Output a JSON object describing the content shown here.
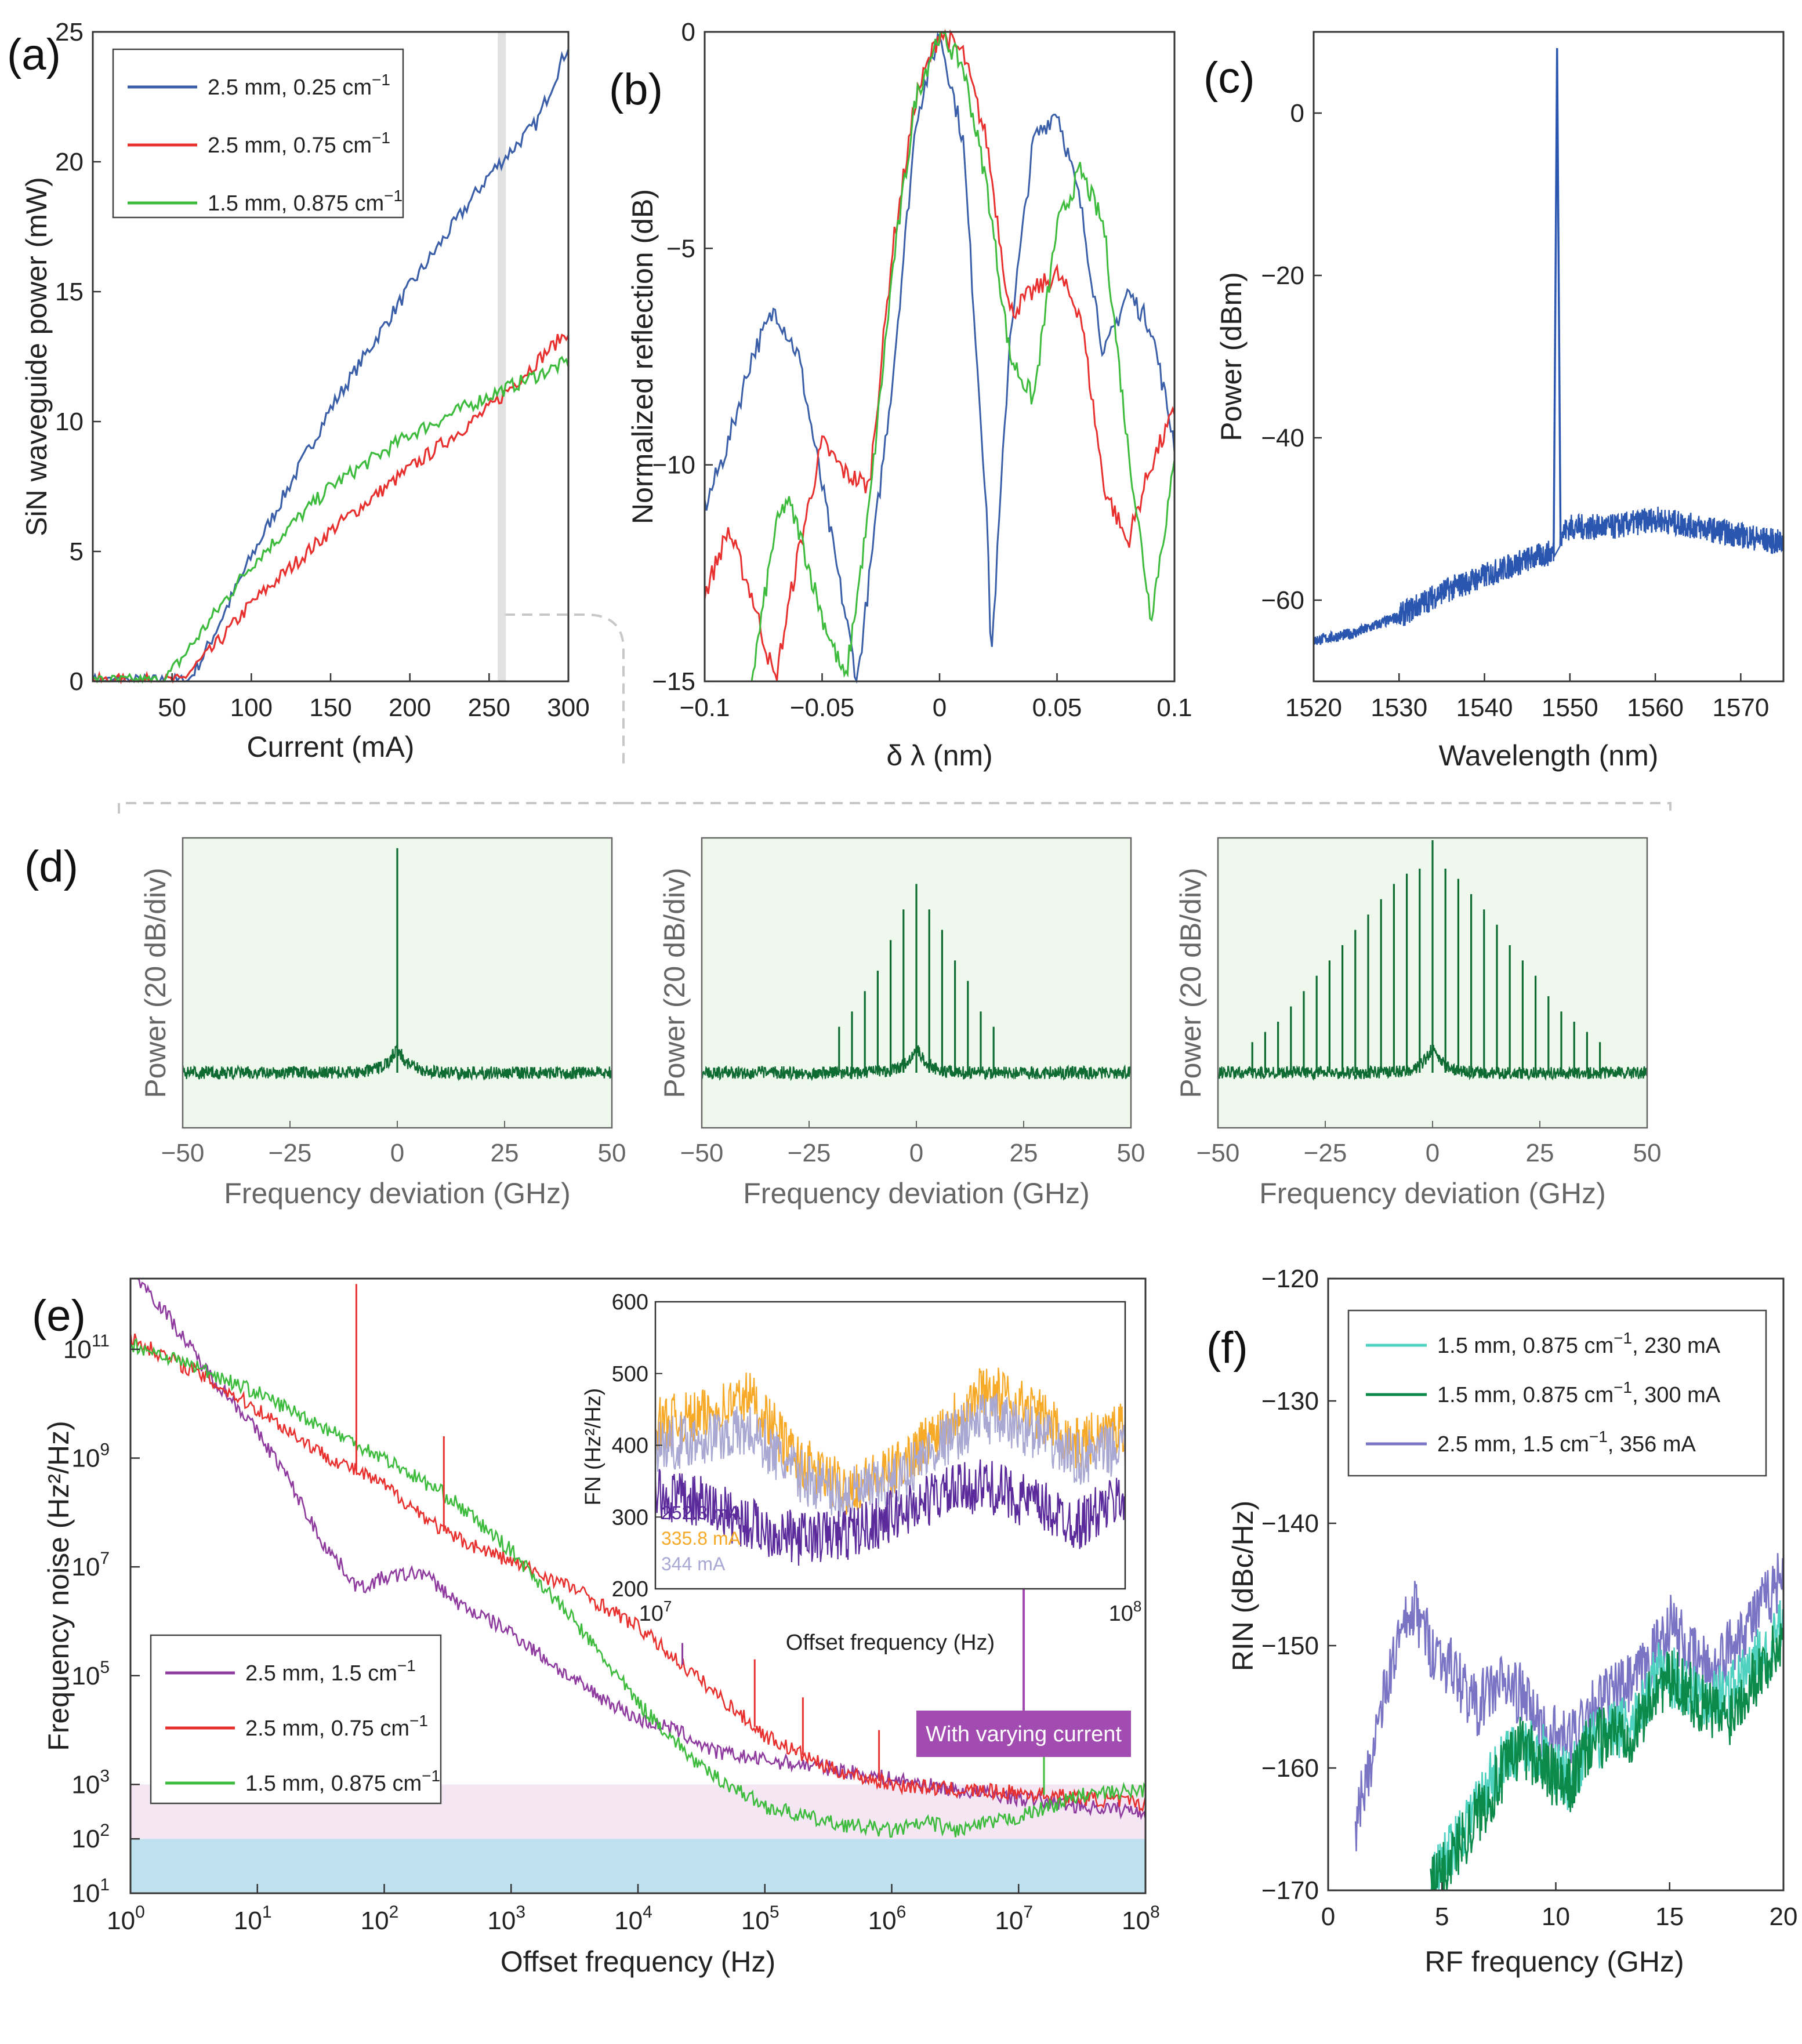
{
  "figure": {
    "panel_labels": [
      "(a)",
      "(b)",
      "(c)",
      "(d)",
      "(e)",
      "(f)"
    ]
  },
  "chart_data": [
    {
      "id": "a",
      "type": "line",
      "xlabel": "Current (mA)",
      "ylabel": "SiN waveguide power (mW)",
      "xlim": [
        0,
        300
      ],
      "ylim": [
        0,
        25
      ],
      "xticks": [
        50,
        100,
        150,
        200,
        250,
        300
      ],
      "yticks": [
        0,
        5,
        10,
        15,
        20,
        25
      ],
      "highlight_x": 258,
      "legend": "top-left",
      "series": [
        {
          "name": "2.5 mm, 0.25 cm",
          "sup": "−1",
          "color": "#3a5fa8",
          "x": [
            0,
            60,
            70,
            100,
            150,
            200,
            250,
            280,
            300
          ],
          "y": [
            0,
            0,
            1.0,
            4.8,
            10.5,
            15.2,
            19.5,
            21.5,
            24.5
          ]
        },
        {
          "name": "2.5 mm, 0.75 cm",
          "sup": "−1",
          "color": "#e8312f",
          "x": [
            0,
            55,
            75,
            100,
            150,
            200,
            250,
            300
          ],
          "y": [
            0,
            0,
            1.2,
            3.0,
            5.8,
            8.2,
            10.5,
            13.5
          ]
        },
        {
          "name": "1.5 mm, 0.875 cm",
          "sup": "−1",
          "color": "#3dbb3d",
          "x": [
            0,
            45,
            60,
            100,
            150,
            200,
            250,
            300
          ],
          "y": [
            0,
            0,
            1.2,
            4.5,
            7.5,
            9.5,
            11.0,
            12.3
          ]
        }
      ]
    },
    {
      "id": "b",
      "type": "line",
      "xlabel": "δ λ (nm)",
      "ylabel": "Normalized reflection (dB)",
      "xlim": [
        -0.1,
        0.1
      ],
      "ylim": [
        -15,
        0
      ],
      "xticks": [
        -0.1,
        -0.05,
        0,
        0.05,
        0.1
      ],
      "yticks": [
        0,
        -5,
        -10,
        -15
      ],
      "series": [
        {
          "name": "blue",
          "color": "#3a5fa8",
          "x": [
            -0.1,
            -0.09,
            -0.08,
            -0.07,
            -0.06,
            -0.05,
            -0.04,
            -0.035,
            -0.02,
            -0.01,
            0.0,
            0.01,
            0.02,
            0.022,
            0.03,
            0.04,
            0.05,
            0.06,
            0.07,
            0.08,
            0.09,
            0.1
          ],
          "y": [
            -11,
            -9.5,
            -7.5,
            -6.4,
            -7.5,
            -10.5,
            -13.5,
            -15,
            -8,
            -2,
            0,
            -2.5,
            -11,
            -14.5,
            -7,
            -2.5,
            -1.8,
            -4,
            -7.5,
            -6,
            -6.8,
            -9.5
          ]
        },
        {
          "name": "red",
          "color": "#e8312f",
          "x": [
            -0.1,
            -0.09,
            -0.08,
            -0.07,
            -0.06,
            -0.05,
            -0.04,
            -0.03,
            -0.02,
            -0.01,
            0.0,
            0.01,
            0.02,
            0.03,
            0.04,
            0.05,
            0.06,
            0.07,
            0.08,
            0.09,
            0.1
          ],
          "y": [
            -13,
            -11.5,
            -13,
            -15,
            -12,
            -9.5,
            -10.2,
            -10.5,
            -5,
            -1.5,
            0,
            -0.5,
            -2.5,
            -6.5,
            -6,
            -5.6,
            -6.5,
            -10.5,
            -11.8,
            -10,
            -8.8
          ]
        },
        {
          "name": "green",
          "color": "#3dbb3d",
          "x": [
            -0.08,
            -0.07,
            -0.065,
            -0.06,
            -0.05,
            -0.04,
            -0.03,
            -0.02,
            -0.01,
            0.0,
            0.01,
            0.02,
            0.03,
            0.04,
            0.05,
            0.06,
            0.07,
            0.08,
            0.09,
            0.1
          ],
          "y": [
            -15,
            -11.5,
            -10.8,
            -11.5,
            -13.5,
            -15,
            -11,
            -5.5,
            -1.5,
            0,
            -0.8,
            -3.5,
            -7.5,
            -8.5,
            -4.5,
            -3.2,
            -4.5,
            -9.5,
            -13.5,
            -10
          ]
        }
      ]
    },
    {
      "id": "c",
      "type": "line",
      "xlabel": "Wavelength (nm)",
      "ylabel": "Power (dBm)",
      "xlim": [
        1520,
        1575
      ],
      "ylim": [
        -70,
        10
      ],
      "xticks": [
        1520,
        1530,
        1540,
        1550,
        1560,
        1570
      ],
      "yticks": [
        -60,
        -40,
        -20,
        0
      ],
      "series": [
        {
          "name": "spectrum",
          "color": "#2a56b0",
          "x": [
            1520,
            1525,
            1530,
            1535,
            1540,
            1545,
            1548.3,
            1548.5,
            1548.7,
            1550,
            1555,
            1560,
            1565,
            1570,
            1575
          ],
          "y": [
            -65,
            -64,
            -62,
            -59,
            -57,
            -55,
            -54,
            8,
            -52,
            -51,
            -51,
            -50,
            -51,
            -52,
            -53
          ]
        }
      ]
    },
    {
      "id": "d",
      "type": "line",
      "xlabel": "Frequency deviation (GHz)",
      "ylabel": "Power (20 dB/div)",
      "xlim": [
        -50,
        50
      ],
      "xticks": [
        -50,
        -25,
        0,
        25,
        50
      ],
      "subplots": [
        {
          "name": "single-line",
          "peaks": [
            0
          ],
          "peak_heights_div": [
            4.4
          ]
        },
        {
          "name": "few-comb-lines",
          "peaks": [
            -18,
            -15,
            -12,
            -9,
            -6,
            -3,
            0,
            3,
            6,
            9,
            12,
            15,
            18
          ],
          "peak_heights_div": [
            0.9,
            1.2,
            1.6,
            2.0,
            2.6,
            3.2,
            3.7,
            3.2,
            2.8,
            2.2,
            1.8,
            1.2,
            0.9
          ]
        },
        {
          "name": "broad-comb",
          "peaks": [
            -42,
            -39,
            -36,
            -33,
            -30,
            -27,
            -24,
            -21,
            -18,
            -15,
            -12,
            -9,
            -6,
            -3,
            0,
            3,
            6,
            9,
            12,
            15,
            18,
            21,
            24,
            27,
            30,
            33,
            36,
            39
          ],
          "peak_heights_div": [
            0.6,
            0.8,
            1.0,
            1.3,
            1.6,
            1.9,
            2.2,
            2.5,
            2.8,
            3.1,
            3.4,
            3.7,
            3.9,
            4.0,
            4.6,
            4.0,
            3.8,
            3.5,
            3.2,
            2.9,
            2.5,
            2.2,
            1.9,
            1.5,
            1.2,
            1.0,
            0.8,
            0.6
          ]
        }
      ]
    },
    {
      "id": "e",
      "type": "line",
      "xscale": "log",
      "yscale": "log",
      "xlabel": "Offset frequency (Hz)",
      "ylabel": "Frequency noise (Hz²/Hz)",
      "xlim_exp": [
        0,
        8
      ],
      "ylim_exp": [
        1,
        12.3
      ],
      "xtick_exps": [
        0,
        1,
        2,
        3,
        4,
        5,
        6,
        7,
        8
      ],
      "ytick_exps": [
        1,
        2,
        3,
        5,
        7,
        9,
        11
      ],
      "bands": [
        {
          "from_exp": 1,
          "to_exp": 2,
          "color": "#bfe0ef"
        },
        {
          "from_exp": 2,
          "to_exp": 3,
          "color": "#f4e6f2"
        }
      ],
      "legend": "bottom-left",
      "series": [
        {
          "name": "2.5 mm, 1.5 cm",
          "sup": "−1",
          "color": "#8e3a9e",
          "logx": [
            0,
            0.3,
            0.6,
            0.9,
            1.2,
            1.5,
            1.8,
            2.0,
            2.3,
            2.6,
            3.0,
            3.5,
            4.0,
            4.3,
            4.6,
            5.0,
            5.5,
            6.0,
            6.5,
            7.0,
            7.5,
            8.0
          ],
          "logy": [
            12.5,
            11.6,
            10.6,
            9.8,
            8.8,
            7.5,
            6.6,
            6.8,
            6.9,
            6.3,
            5.8,
            4.9,
            4.2,
            4.0,
            3.6,
            3.45,
            3.3,
            3.1,
            2.9,
            2.75,
            2.6,
            2.5
          ]
        },
        {
          "name": "2.5 mm, 0.75 cm",
          "sup": "−1",
          "color": "#e8312f",
          "logx": [
            0,
            0.5,
            1.0,
            1.5,
            2.0,
            2.5,
            3.0,
            3.5,
            4.0,
            4.5,
            5.0,
            5.5,
            6.0,
            6.5,
            7.0,
            7.5,
            8.0
          ],
          "logy": [
            11.2,
            10.6,
            9.9,
            9.1,
            8.5,
            7.6,
            7.1,
            6.6,
            5.9,
            4.9,
            3.9,
            3.3,
            3.0,
            2.9,
            2.85,
            2.75,
            2.65
          ]
        },
        {
          "name": "1.5 mm, 0.875 cm",
          "sup": "−1",
          "color": "#3dbb3d",
          "logx": [
            0,
            0.5,
            1.0,
            1.5,
            2.0,
            2.5,
            3.0,
            3.5,
            4.0,
            4.5,
            5.0,
            5.5,
            6.0,
            6.3,
            6.5,
            7.0,
            7.5,
            8.0
          ],
          "logy": [
            11.1,
            10.7,
            10.2,
            9.6,
            9.0,
            8.3,
            7.3,
            6.0,
            4.5,
            3.3,
            2.6,
            2.3,
            2.15,
            2.3,
            2.15,
            2.4,
            2.8,
            2.9
          ]
        }
      ],
      "annotation": "With varying current",
      "annotation_color": "#a24bb0",
      "inset": {
        "xlabel": "Offset frequency (Hz)",
        "ylabel": "FN (Hz²/Hz)",
        "x_exp_range": [
          7,
          8
        ],
        "ylim": [
          200,
          600
        ],
        "yticks": [
          200,
          300,
          400,
          500,
          600
        ],
        "series": [
          {
            "name": "252.3 mA",
            "color": "#5b2a9b",
            "logx": [
              7.0,
              7.1,
              7.2,
              7.3,
              7.4,
              7.5,
              7.6,
              7.7,
              7.8,
              7.9,
              8.0
            ],
            "y": [
              330,
              320,
              290,
              270,
              275,
              300,
              330,
              345,
              320,
              290,
              330
            ]
          },
          {
            "name": "335.8 mA",
            "color": "#f7a928",
            "logx": [
              7.0,
              7.1,
              7.2,
              7.3,
              7.4,
              7.5,
              7.6,
              7.7,
              7.8,
              7.9,
              8.0
            ],
            "y": [
              430,
              440,
              470,
              380,
              340,
              360,
              420,
              480,
              450,
              400,
              430
            ]
          },
          {
            "name": "344 mA",
            "color": "#a9a8d2",
            "logx": [
              7.0,
              7.1,
              7.2,
              7.3,
              7.4,
              7.5,
              7.6,
              7.7,
              7.8,
              7.9,
              8.0
            ],
            "y": [
              400,
              410,
              420,
              360,
              330,
              345,
              400,
              440,
              420,
              380,
              400
            ]
          }
        ]
      }
    },
    {
      "id": "f",
      "type": "line",
      "xlabel": "RF frequency (GHz)",
      "ylabel": "RIN (dBc/Hz)",
      "xlim": [
        0,
        20
      ],
      "ylim": [
        -170,
        -120
      ],
      "xticks": [
        0,
        5,
        10,
        15,
        20
      ],
      "yticks": [
        -170,
        -160,
        -150,
        -140,
        -130,
        -120
      ],
      "legend": "top-right",
      "series": [
        {
          "name": "1.5 mm, 0.875 cm",
          "sup": "−1",
          "suffix": ", 230 mA",
          "color": "#4fd1c0",
          "x": [
            4.5,
            5.5,
            6.5,
            7.5,
            8.5,
            9.5,
            10.5,
            11.5,
            12.5,
            13.5,
            14.5,
            15.5,
            16.5,
            17.5,
            18.5,
            19.5,
            20
          ],
          "y": [
            -170,
            -166,
            -163,
            -160,
            -158,
            -159,
            -161,
            -158,
            -157,
            -156,
            -152,
            -153,
            -154,
            -154,
            -152,
            -150,
            -148
          ]
        },
        {
          "name": "1.5 mm, 0.875 cm",
          "sup": "−1",
          "suffix": ", 300 mA",
          "color": "#0c8a4a",
          "x": [
            4.5,
            5.5,
            6.5,
            7.5,
            8.5,
            9.5,
            10.5,
            11.5,
            12.5,
            13.5,
            14.5,
            15.5,
            16.5,
            17.5,
            18.5,
            19.5,
            20
          ],
          "y": [
            -170,
            -167,
            -164,
            -161,
            -158,
            -160,
            -162,
            -158,
            -157,
            -157,
            -153,
            -153,
            -155,
            -156,
            -153,
            -151,
            -149
          ]
        },
        {
          "name": "2.5 mm, 1.5 cm",
          "sup": "−1",
          "suffix": ", 356 mA",
          "color": "#7a74c4",
          "x": [
            1.2,
            2.0,
            3.0,
            3.8,
            4.5,
            5.5,
            6.5,
            7.5,
            8.5,
            9.5,
            10.5,
            11.5,
            12.5,
            13.5,
            14.5,
            15.0,
            16.0,
            17.0,
            18.0,
            19.0,
            20
          ],
          "y": [
            -165,
            -158,
            -150,
            -147,
            -150,
            -152,
            -155,
            -153,
            -154,
            -157,
            -158,
            -155,
            -154,
            -153,
            -150,
            -148,
            -151,
            -152,
            -149,
            -147,
            -144
          ]
        }
      ]
    }
  ]
}
